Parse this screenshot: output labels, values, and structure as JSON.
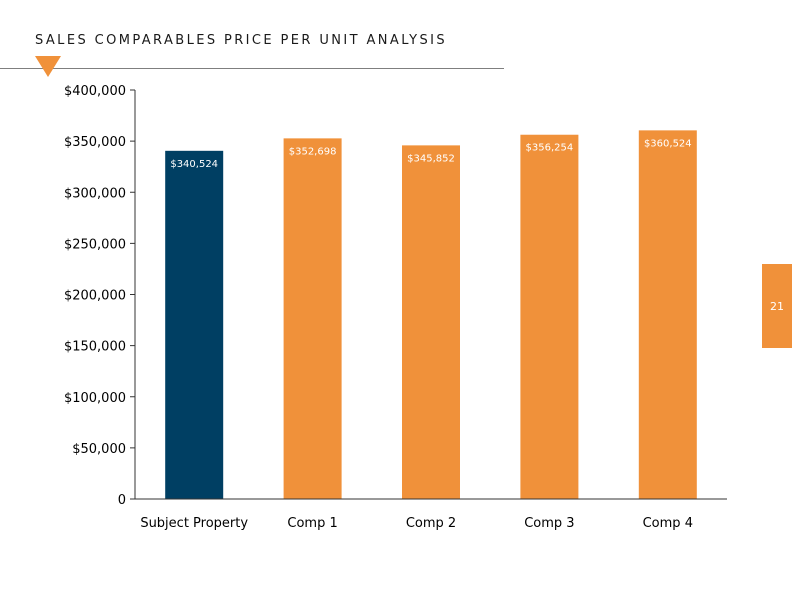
{
  "page": {
    "title": "SALES COMPARABLES PRICE PER UNIT ANALYSIS",
    "page_number": "21"
  },
  "colors": {
    "accent": "#f0913a",
    "subject": "#003f63",
    "axis": "#333333",
    "rule": "#7f7f7f"
  },
  "chart_data": {
    "type": "bar",
    "title": "",
    "xlabel": "",
    "ylabel": "",
    "categories": [
      "Subject Property",
      "Comp 1",
      "Comp 2",
      "Comp 3",
      "Comp 4"
    ],
    "values": [
      340524,
      352698,
      345852,
      356254,
      360524
    ],
    "data_labels": [
      "$340,524",
      "$352,698",
      "$345,852",
      "$356,254",
      "$360,524"
    ],
    "bar_colors": [
      "#003f63",
      "#f0913a",
      "#f0913a",
      "#f0913a",
      "#f0913a"
    ],
    "ylim": [
      0,
      400000
    ],
    "yticks": [
      0,
      50000,
      100000,
      150000,
      200000,
      250000,
      300000,
      350000,
      400000
    ],
    "ytick_labels": [
      "0",
      "$50,000",
      "$100,000",
      "$150,000",
      "$200,000",
      "$250,000",
      "$300,000",
      "$350,000",
      "$400,000"
    ],
    "grid": false,
    "legend": "none"
  }
}
